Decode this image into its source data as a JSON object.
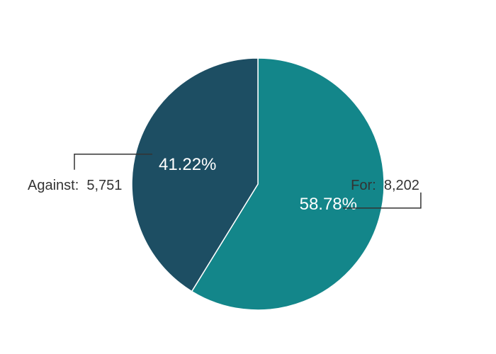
{
  "chart_data": {
    "type": "pie",
    "slices": [
      {
        "name": "For",
        "value": 8202,
        "value_label": "8,202",
        "percent": 58.78,
        "percent_label": "58.78%",
        "color": "#13868a"
      },
      {
        "name": "Against",
        "value": 5751,
        "value_label": "5,751",
        "percent": 41.22,
        "percent_label": "41.22%",
        "color": "#1d4e63"
      }
    ],
    "start_angle_deg": 0,
    "direction": "clockwise",
    "label_separator": ":",
    "legend": "none"
  }
}
